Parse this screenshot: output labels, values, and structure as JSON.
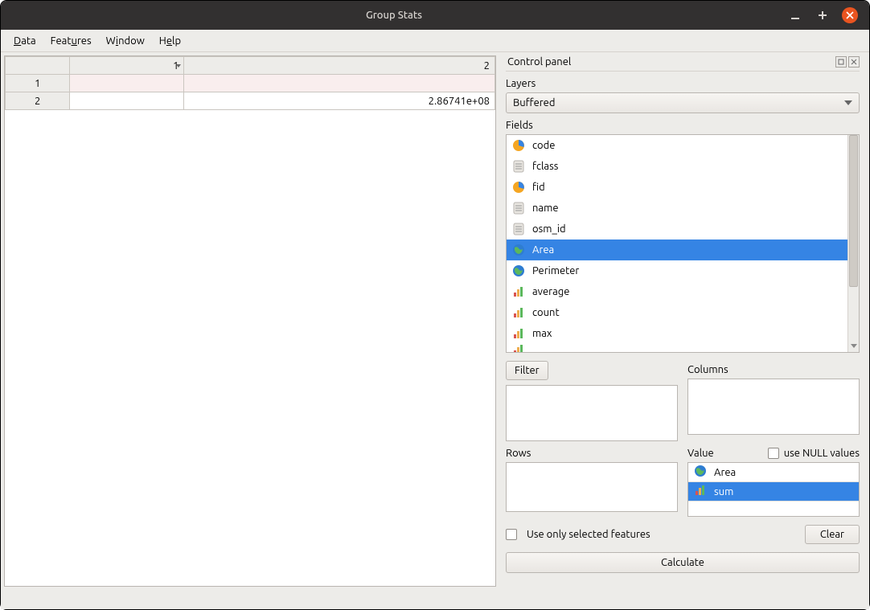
{
  "window": {
    "title": "Group Stats"
  },
  "menu": {
    "data": "Data",
    "features": "Features",
    "window": "Window",
    "help": "Help"
  },
  "table": {
    "col_headers": [
      "1",
      "2"
    ],
    "rows": [
      {
        "rh": "1",
        "c1": "",
        "c2": ""
      },
      {
        "rh": "2",
        "c1": "",
        "c2": "2.86741e+08"
      }
    ]
  },
  "control_panel": {
    "title": "Control panel",
    "layers_label": "Layers",
    "layer_selected": "Buffered",
    "fields_label": "Fields",
    "fields": [
      {
        "icon": "pie",
        "label": "code",
        "selected": false
      },
      {
        "icon": "doc",
        "label": "fclass",
        "selected": false
      },
      {
        "icon": "pie",
        "label": "fid",
        "selected": false
      },
      {
        "icon": "doc",
        "label": "name",
        "selected": false
      },
      {
        "icon": "doc",
        "label": "osm_id",
        "selected": false
      },
      {
        "icon": "globe",
        "label": "Area",
        "selected": true
      },
      {
        "icon": "globe",
        "label": "Perimeter",
        "selected": false
      },
      {
        "icon": "bars",
        "label": "average",
        "selected": false
      },
      {
        "icon": "bars",
        "label": "count",
        "selected": false
      },
      {
        "icon": "bars",
        "label": "max",
        "selected": false
      }
    ],
    "filter_label": "Filter",
    "columns_label": "Columns",
    "rows_label": "Rows",
    "value_label": "Value",
    "use_null_label": "use NULL values",
    "value_items": [
      {
        "icon": "globe",
        "label": "Area",
        "selected": false
      },
      {
        "icon": "bars",
        "label": "sum",
        "selected": true
      }
    ],
    "use_only_selected_label": "Use only selected features",
    "clear_label": "Clear",
    "calculate_label": "Calculate"
  },
  "colors": {
    "selection": "#3584e4",
    "close_btn": "#e95420"
  }
}
